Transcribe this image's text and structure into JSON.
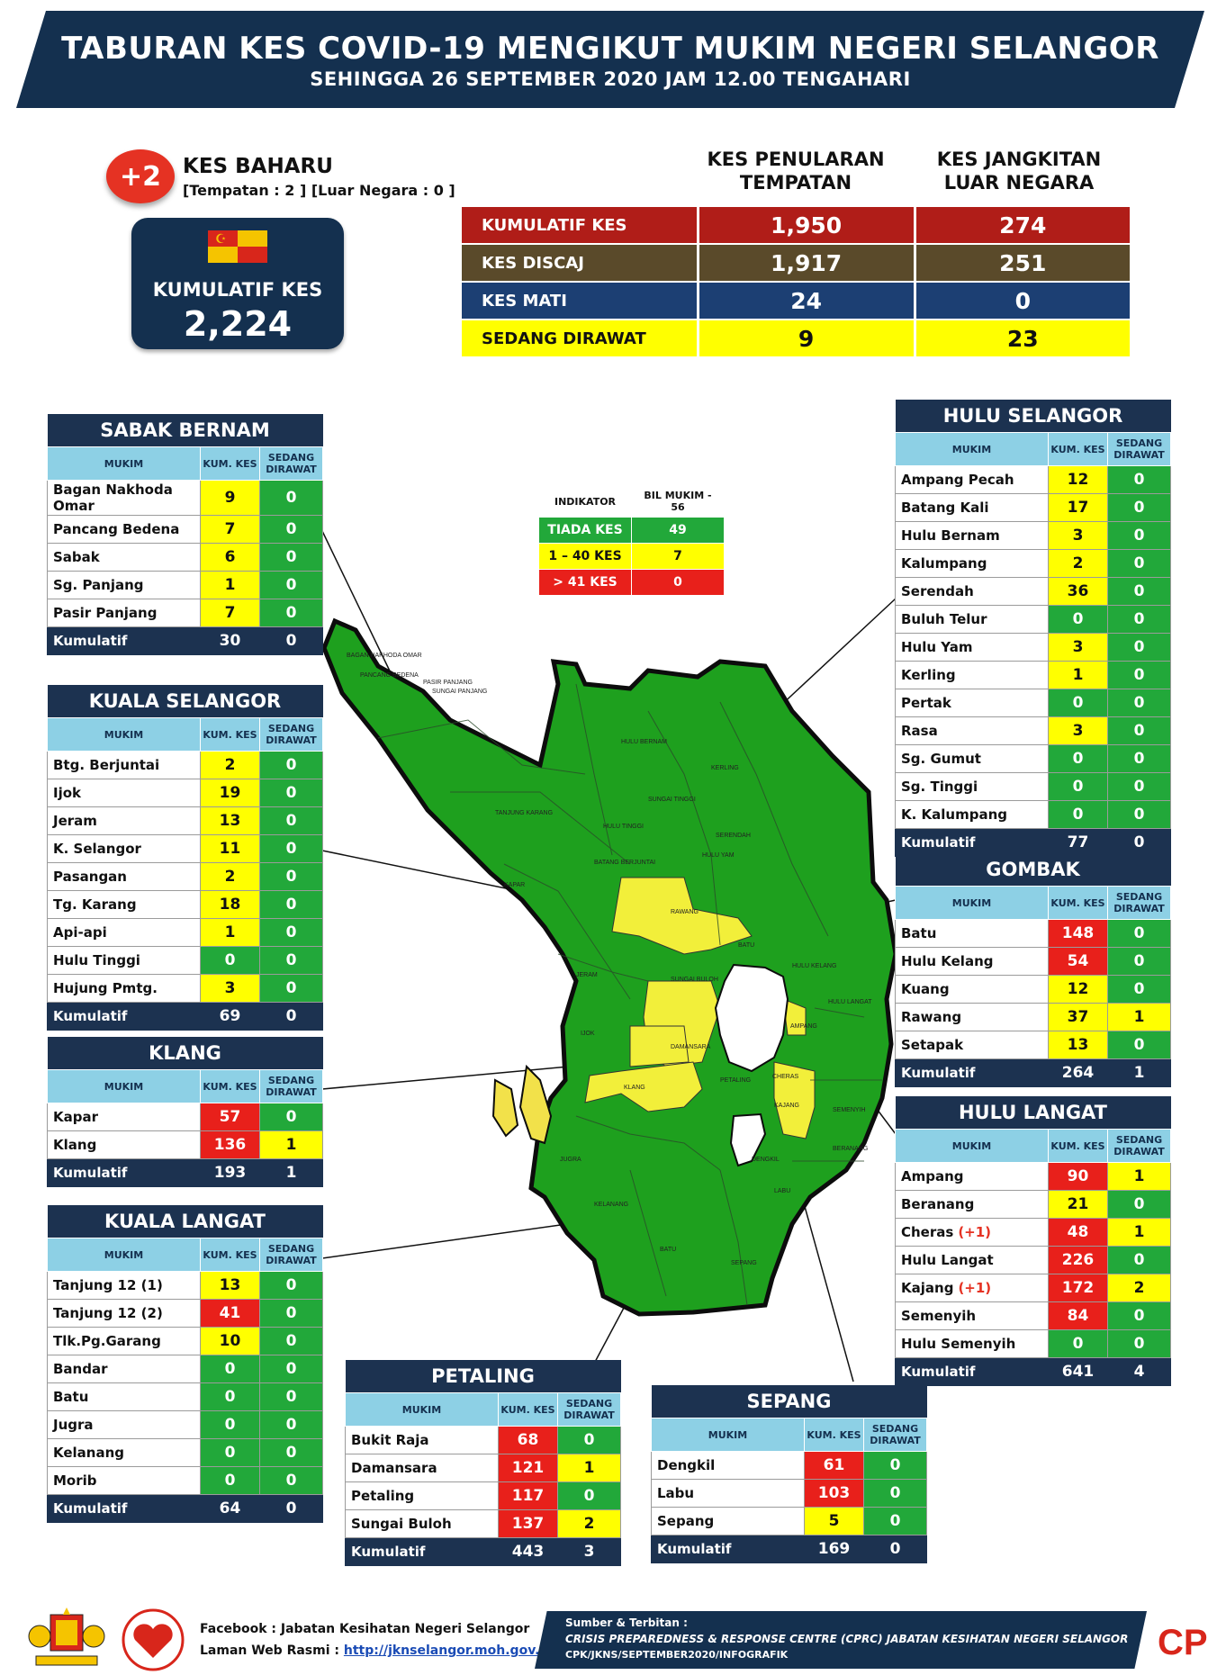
{
  "title": "TABURAN KES COVID-19 MENGIKUT MUKIM NEGERI SELANGOR",
  "subtitle": "SEHINGGA 26 SEPTEMBER 2020 JAM 12.00 TENGAHARI",
  "new_cases": {
    "badge": "+2",
    "label": "KES BAHARU",
    "detail": "[Tempatan : 2 ] [Luar Negara : 0 ]"
  },
  "cumulative": {
    "label": "KUMULATIF KES",
    "value": "2,224"
  },
  "stats_headers": {
    "local": "KES PENULARAN TEMPATAN",
    "imported": "KES JANGKITAN LUAR NEGARA"
  },
  "stats": [
    {
      "label": "KUMULATIF KES",
      "local": "1,950",
      "imported": "274",
      "color": "#b01d18"
    },
    {
      "label": "KES DISCAJ",
      "local": "1,917",
      "imported": "251",
      "color": "#5a4a2a"
    },
    {
      "label": "KES MATI",
      "local": "24",
      "imported": "0",
      "color": "#1c3f73"
    },
    {
      "label": "SEDANG DIRAWAT",
      "local": "9",
      "imported": "23",
      "color": "#ffff00"
    }
  ],
  "indicator": {
    "col1": "INDIKATOR",
    "col2": "BIL MUKIM - 56",
    "rows": [
      {
        "label": "TIADA KES",
        "count": "49",
        "color": "#22a83a"
      },
      {
        "label": "1 – 40 KES",
        "count": "7",
        "color": "#ffff00"
      },
      {
        "label": "> 41 KES",
        "count": "0",
        "color": "#e8201b"
      }
    ]
  },
  "colors": {
    "navy": "#14304f",
    "green": "#22a83a",
    "yellow": "#ffff00",
    "red": "#e8201b",
    "header_blue": "#8dd0e5",
    "map_green": "#1ea01e"
  },
  "table_headers": {
    "mukim": "MUKIM",
    "kum": "KUM. KES",
    "sedang": "SEDANG DIRAWAT"
  },
  "districts": {
    "sabak_bernam": {
      "name": "SABAK BERNAM",
      "rows": [
        {
          "mukim": "Bagan Nakhoda Omar",
          "kum": "9",
          "sedang": "0"
        },
        {
          "mukim": "Pancang Bedena",
          "kum": "7",
          "sedang": "0"
        },
        {
          "mukim": "Sabak",
          "kum": "6",
          "sedang": "0"
        },
        {
          "mukim": "Sg. Panjang",
          "kum": "1",
          "sedang": "0"
        },
        {
          "mukim": "Pasir Panjang",
          "kum": "7",
          "sedang": "0"
        }
      ],
      "total_label": "Kumulatif",
      "total_kum": "30",
      "total_sedang": "0"
    },
    "kuala_selangor": {
      "name": "KUALA SELANGOR",
      "rows": [
        {
          "mukim": "Btg. Berjuntai",
          "kum": "2",
          "sedang": "0"
        },
        {
          "mukim": "Ijok",
          "kum": "19",
          "sedang": "0"
        },
        {
          "mukim": "Jeram",
          "kum": "13",
          "sedang": "0"
        },
        {
          "mukim": "K. Selangor",
          "kum": "11",
          "sedang": "0"
        },
        {
          "mukim": "Pasangan",
          "kum": "2",
          "sedang": "0"
        },
        {
          "mukim": "Tg. Karang",
          "kum": "18",
          "sedang": "0"
        },
        {
          "mukim": "Api-api",
          "kum": "1",
          "sedang": "0"
        },
        {
          "mukim": "Hulu Tinggi",
          "kum": "0",
          "sedang": "0"
        },
        {
          "mukim": "Hujung Pmtg.",
          "kum": "3",
          "sedang": "0"
        }
      ],
      "total_label": "Kumulatif",
      "total_kum": "69",
      "total_sedang": "0"
    },
    "klang": {
      "name": "KLANG",
      "rows": [
        {
          "mukim": "Kapar",
          "kum": "57",
          "sedang": "0"
        },
        {
          "mukim": "Klang",
          "kum": "136",
          "sedang": "1"
        }
      ],
      "total_label": "Kumulatif",
      "total_kum": "193",
      "total_sedang": "1"
    },
    "kuala_langat": {
      "name": "KUALA LANGAT",
      "rows": [
        {
          "mukim": "Tanjung 12 (1)",
          "kum": "13",
          "sedang": "0"
        },
        {
          "mukim": "Tanjung 12 (2)",
          "kum": "41",
          "sedang": "0"
        },
        {
          "mukim": "Tlk.Pg.Garang",
          "kum": "10",
          "sedang": "0"
        },
        {
          "mukim": "Bandar",
          "kum": "0",
          "sedang": "0"
        },
        {
          "mukim": "Batu",
          "kum": "0",
          "sedang": "0"
        },
        {
          "mukim": "Jugra",
          "kum": "0",
          "sedang": "0"
        },
        {
          "mukim": "Kelanang",
          "kum": "0",
          "sedang": "0"
        },
        {
          "mukim": "Morib",
          "kum": "0",
          "sedang": "0"
        }
      ],
      "total_label": "Kumulatif",
      "total_kum": "64",
      "total_sedang": "0"
    },
    "petaling": {
      "name": "PETALING",
      "rows": [
        {
          "mukim": "Bukit Raja",
          "kum": "68",
          "sedang": "0"
        },
        {
          "mukim": "Damansara",
          "kum": "121",
          "sedang": "1"
        },
        {
          "mukim": "Petaling",
          "kum": "117",
          "sedang": "0"
        },
        {
          "mukim": "Sungai Buloh",
          "kum": "137",
          "sedang": "2"
        }
      ],
      "total_label": "Kumulatif",
      "total_kum": "443",
      "total_sedang": "3"
    },
    "sepang": {
      "name": "SEPANG",
      "rows": [
        {
          "mukim": "Dengkil",
          "kum": "61",
          "sedang": "0"
        },
        {
          "mukim": "Labu",
          "kum": "103",
          "sedang": "0"
        },
        {
          "mukim": "Sepang",
          "kum": "5",
          "sedang": "0"
        }
      ],
      "total_label": "Kumulatif",
      "total_kum": "169",
      "total_sedang": "0"
    },
    "hulu_selangor": {
      "name": "HULU SELANGOR",
      "rows": [
        {
          "mukim": "Ampang Pecah",
          "kum": "12",
          "sedang": "0"
        },
        {
          "mukim": "Batang Kali",
          "kum": "17",
          "sedang": "0"
        },
        {
          "mukim": "Hulu Bernam",
          "kum": "3",
          "sedang": "0"
        },
        {
          "mukim": "Kalumpang",
          "kum": "2",
          "sedang": "0"
        },
        {
          "mukim": "Serendah",
          "kum": "36",
          "sedang": "0"
        },
        {
          "mukim": "Buluh Telur",
          "kum": "0",
          "sedang": "0"
        },
        {
          "mukim": "Hulu Yam",
          "kum": "3",
          "sedang": "0"
        },
        {
          "mukim": "Kerling",
          "kum": "1",
          "sedang": "0"
        },
        {
          "mukim": "Pertak",
          "kum": "0",
          "sedang": "0"
        },
        {
          "mukim": "Rasa",
          "kum": "3",
          "sedang": "0"
        },
        {
          "mukim": "Sg. Gumut",
          "kum": "0",
          "sedang": "0"
        },
        {
          "mukim": "Sg. Tinggi",
          "kum": "0",
          "sedang": "0"
        },
        {
          "mukim": "K. Kalumpang",
          "kum": "0",
          "sedang": "0"
        }
      ],
      "total_label": "Kumulatif",
      "total_kum": "77",
      "total_sedang": "0"
    },
    "gombak": {
      "name": "GOMBAK",
      "rows": [
        {
          "mukim": "Batu",
          "kum": "148",
          "sedang": "0"
        },
        {
          "mukim": "Hulu Kelang",
          "kum": "54",
          "sedang": "0"
        },
        {
          "mukim": "Kuang",
          "kum": "12",
          "sedang": "0"
        },
        {
          "mukim": "Rawang",
          "kum": "37",
          "sedang": "1"
        },
        {
          "mukim": "Setapak",
          "kum": "13",
          "sedang": "0"
        }
      ],
      "total_label": "Kumulatif",
      "total_kum": "264",
      "total_sedang": "1"
    },
    "hulu_langat": {
      "name": "HULU LANGAT",
      "rows": [
        {
          "mukim": "Ampang",
          "kum": "90",
          "sedang": "1"
        },
        {
          "mukim": "Beranang",
          "kum": "21",
          "sedang": "0"
        },
        {
          "mukim": "Cheras",
          "plus": "(+1)",
          "kum": "48",
          "sedang": "1"
        },
        {
          "mukim": "Hulu Langat",
          "kum": "226",
          "sedang": "0"
        },
        {
          "mukim": "Kajang",
          "plus": "(+1)",
          "kum": "172",
          "sedang": "2"
        },
        {
          "mukim": "Semenyih",
          "kum": "84",
          "sedang": "0"
        },
        {
          "mukim": "Hulu Semenyih",
          "kum": "0",
          "sedang": "0"
        }
      ],
      "total_label": "Kumulatif",
      "total_kum": "641",
      "total_sedang": "4"
    }
  },
  "map_labels": [
    "BAGAN NAKHODA OMAR",
    "PANCANG BEDENA",
    "SUNGAI PANJANG",
    "PASIR PANJANG",
    "HULU BERNAM",
    "KERLING",
    "SUNGAI TINGGI",
    "TANJUNG KARANG",
    "HULU TINGGI",
    "BATANG BERJUNTAI",
    "RAWANG",
    "SUNGAI BULOH",
    "DAMANSARA",
    "KLANG",
    "PETALING",
    "CHERAS",
    "KAJANG",
    "SEMENYIH",
    "BERANANG",
    "DENGKIL",
    "LABU",
    "SEPANG",
    "JUGRA",
    "KELANANG",
    "BATU",
    "KAPAR",
    "JERAM",
    "IJOK",
    "HULU LANGAT",
    "HULU YAM",
    "SERENDAH",
    "BATU",
    "HULU KELANG",
    "AMPANG"
  ],
  "footer": {
    "facebook": "Facebook : Jabatan Kesihatan Negeri Selangor",
    "web_label": "Laman Web Rasmi : ",
    "web_url": "http://jknselangor.moh.gov.my",
    "source_label": "Sumber & Terbitan :",
    "source": "CRISIS PREPAREDNESS & RESPONSE CENTRE (CPRC) JABATAN KESIHATAN NEGERI SELANGOR",
    "ref": "CPK/JKNS/SEPTEMBER2020/INFOGRAFIK",
    "logo_text": "CPRC"
  }
}
